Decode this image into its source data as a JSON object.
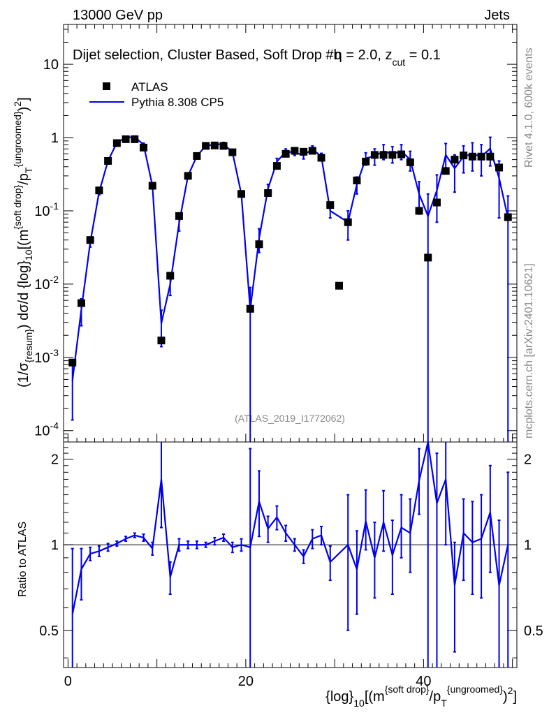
{
  "header": {
    "left": "13000 GeV pp",
    "right": "Jets"
  },
  "plot_title": "Dijet selection, Cluster Based, Soft Drop #b",
  "plot_title_suffix": {
    "beta_symbol": "η",
    "beta_value": " = 2.0, z",
    "zcut_sub": "cut",
    "zcut_value": " = 0.1"
  },
  "side_labels": {
    "rivet": "Rivet 4.1.0,  600k events",
    "mcplots": "mcplots.cern.ch [arXiv:2401.10621]"
  },
  "watermark": "(ATLAS_2019_I1772062)",
  "legend": {
    "data_label": "ATLAS",
    "mc_label": "Pythia 8.308 CP5"
  },
  "axes": {
    "ylabel_main": "(1/σ{resum}) dσ/d {log}10[(m{soft drop}/pT{ungroomed})2]",
    "ylabel_ratio": "Ratio to ATLAS",
    "xlabel": "{log}10[(m{soft drop}/pT{ungroomed})2]",
    "x_ticks": [
      "0",
      "20",
      "40"
    ],
    "y_main_ticks": [
      "10",
      "1",
      "10^-1",
      "10^-2",
      "10^-3",
      "10^-4"
    ],
    "y_ratio_ticks": [
      "2",
      "1",
      "0.5"
    ]
  },
  "colors": {
    "mc": "#0000ee",
    "data": "#000000",
    "grey_text": "#888888"
  },
  "chart_data": {
    "type": "scatter",
    "x_range": [
      -0.5,
      50.5
    ],
    "y_range_main": [
      7e-05,
      35
    ],
    "y_scale_main": "log",
    "y_range_ratio": [
      0.37,
      2.3
    ],
    "y_scale_ratio": "log",
    "legend_position": "top-left",
    "data": {
      "name": "ATLAS",
      "x": [
        0.5,
        1.5,
        2.5,
        3.5,
        4.5,
        5.5,
        6.5,
        7.5,
        8.5,
        9.5,
        10.5,
        11.5,
        12.5,
        13.5,
        14.5,
        15.5,
        16.5,
        17.5,
        18.5,
        19.5,
        20.5,
        21.5,
        22.5,
        23.5,
        24.5,
        25.5,
        26.5,
        27.5,
        28.5,
        29.5,
        30.5,
        31.5,
        32.5,
        33.5,
        34.5,
        35.5,
        36.5,
        37.5,
        38.5,
        39.5,
        40.5,
        41.5,
        42.5,
        43.5,
        44.5,
        45.5,
        46.5,
        47.5,
        48.5,
        49.5
      ],
      "y": [
        0.00085,
        0.0055,
        0.04,
        0.19,
        0.48,
        0.84,
        0.95,
        0.95,
        0.73,
        0.22,
        0.0017,
        0.013,
        0.085,
        0.3,
        0.56,
        0.77,
        0.78,
        0.77,
        0.63,
        0.17,
        0.0046,
        0.035,
        0.175,
        0.41,
        0.6,
        0.66,
        0.64,
        0.66,
        0.53,
        0.12,
        0.0095,
        0.07,
        0.26,
        0.47,
        0.58,
        0.58,
        0.58,
        0.59,
        0.46,
        0.1,
        0.023,
        0.13,
        0.35,
        0.5,
        0.57,
        0.55,
        0.55,
        0.55,
        0.39,
        0.082
      ]
    },
    "mc": {
      "name": "Pythia 8.308 CP5",
      "x": [
        0.5,
        1.5,
        2.5,
        3.5,
        4.5,
        5.5,
        6.5,
        7.5,
        8.5,
        9.5,
        10.5,
        11.5,
        12.5,
        13.5,
        14.5,
        15.5,
        16.5,
        17.5,
        18.5,
        19.5,
        20.5,
        21.5,
        22.5,
        23.5,
        24.5,
        25.5,
        26.5,
        27.5,
        28.5,
        29.5,
        31.5,
        32.5,
        33.5,
        34.5,
        35.5,
        36.5,
        37.5,
        38.5,
        39.5,
        40.5,
        41.5,
        42.5,
        43.5,
        44.5,
        45.5,
        46.5,
        47.5,
        48.5,
        49.5
      ],
      "y": [
        0.00048,
        0.0045,
        0.037,
        0.18,
        0.48,
        0.85,
        1.0,
        1.02,
        0.8,
        0.22,
        0.0029,
        0.01,
        0.068,
        0.3,
        0.56,
        0.77,
        0.8,
        0.82,
        0.63,
        0.17,
        0.0045,
        0.042,
        0.2,
        0.47,
        0.64,
        0.63,
        0.57,
        0.7,
        0.55,
        0.1,
        0.07,
        0.23,
        0.52,
        0.56,
        0.65,
        0.6,
        0.65,
        0.5,
        0.17,
        0.085,
        0.19,
        0.58,
        0.38,
        0.55,
        0.6,
        0.55,
        0.71,
        0.28,
        0.08
      ],
      "err_lo": [
        0.00034,
        0.0018,
        0.005,
        0.015,
        0.02,
        0.03,
        0.03,
        0.03,
        0.04,
        0.01,
        0.0015,
        0.003,
        0.015,
        0.02,
        0.03,
        0.03,
        0.04,
        0.04,
        0.04,
        0.01,
        0.0045,
        0.015,
        0.03,
        0.05,
        0.06,
        0.06,
        0.06,
        0.07,
        0.06,
        0.02,
        0.03,
        0.06,
        0.1,
        0.14,
        0.15,
        0.15,
        0.15,
        0.15,
        0.08,
        0.085,
        0.12,
        0.25,
        0.2,
        0.22,
        0.25,
        0.25,
        0.3,
        0.2,
        0.08
      ],
      "err_hi": [
        0.00034,
        0.0018,
        0.005,
        0.015,
        0.02,
        0.03,
        0.03,
        0.03,
        0.04,
        0.01,
        0.0015,
        0.003,
        0.015,
        0.02,
        0.03,
        0.03,
        0.04,
        0.04,
        0.04,
        0.01,
        0.0045,
        0.015,
        0.03,
        0.05,
        0.06,
        0.06,
        0.06,
        0.07,
        0.06,
        0.02,
        0.03,
        0.06,
        0.1,
        0.14,
        0.15,
        0.15,
        0.15,
        0.15,
        0.08,
        0.085,
        0.12,
        0.25,
        0.2,
        0.22,
        0.25,
        0.25,
        0.3,
        0.2,
        0.08
      ]
    },
    "ratio": {
      "name": "Pythia 8.308 CP5 / ATLAS",
      "x": [
        0.5,
        1.5,
        2.5,
        3.5,
        4.5,
        5.5,
        6.5,
        7.5,
        8.5,
        9.5,
        10.5,
        11.5,
        12.5,
        13.5,
        14.5,
        15.5,
        16.5,
        17.5,
        18.5,
        19.5,
        20.5,
        21.5,
        22.5,
        23.5,
        24.5,
        25.5,
        26.5,
        27.5,
        28.5,
        29.5,
        31.5,
        32.5,
        33.5,
        34.5,
        35.5,
        36.5,
        37.5,
        38.5,
        39.5,
        40.5,
        41.5,
        42.5,
        43.5,
        44.5,
        45.5,
        46.5,
        47.5,
        48.5,
        49.5
      ],
      "y": [
        0.57,
        0.82,
        0.93,
        0.95,
        0.98,
        1.01,
        1.05,
        1.08,
        1.06,
        0.97,
        1.7,
        0.77,
        1.0,
        1.0,
        1.0,
        1.0,
        1.03,
        1.06,
        0.98,
        1.0,
        0.98,
        1.42,
        1.14,
        1.25,
        1.1,
        1.0,
        0.91,
        1.05,
        1.08,
        0.87,
        1.0,
        0.82,
        1.21,
        0.9,
        1.2,
        0.92,
        1.15,
        1.1,
        1.68,
        2.6,
        1.4,
        1.7,
        0.72,
        1.1,
        1.02,
        1.05,
        1.3,
        0.72,
        1.0
      ],
      "err_lo": [
        0.4,
        0.18,
        0.05,
        0.04,
        0.03,
        0.02,
        0.02,
        0.02,
        0.03,
        0.05,
        0.55,
        0.1,
        0.05,
        0.03,
        0.03,
        0.02,
        0.03,
        0.03,
        0.04,
        0.05,
        0.98,
        0.35,
        0.12,
        0.12,
        0.07,
        0.05,
        0.05,
        0.08,
        0.08,
        0.12,
        0.5,
        0.25,
        0.25,
        0.25,
        0.25,
        0.25,
        0.25,
        0.3,
        0.4,
        2.6,
        1.4,
        0.7,
        0.3,
        0.35,
        0.35,
        0.4,
        0.5,
        0.72,
        1.0
      ],
      "err_hi": [
        0.4,
        0.15,
        0.05,
        0.04,
        0.03,
        0.02,
        0.02,
        0.02,
        0.03,
        0.05,
        0.7,
        0.1,
        0.05,
        0.03,
        0.03,
        0.02,
        0.03,
        0.03,
        0.04,
        0.05,
        1.2,
        0.4,
        0.12,
        0.12,
        0.07,
        0.05,
        0.05,
        0.08,
        0.08,
        0.12,
        0.5,
        0.3,
        0.35,
        0.3,
        0.35,
        0.3,
        0.35,
        0.35,
        0.5,
        0.5,
        0.7,
        0.7,
        0.3,
        0.35,
        0.4,
        0.45,
        0.6,
        0.5,
        0.8
      ]
    }
  }
}
